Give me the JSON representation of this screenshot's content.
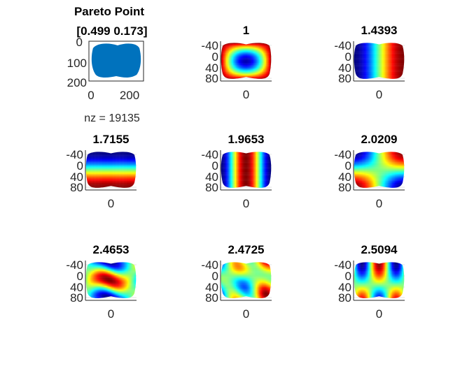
{
  "figure": {
    "main_title_line1": "Pareto Point",
    "main_title_line2": "[0.499 0.173]"
  },
  "chart_data": [
    {
      "type": "spy",
      "title": "Pareto Point\n[0.499 0.173]",
      "xlabel": "nz = 19135",
      "xticks": [
        "0",
        "200"
      ],
      "yticks": [
        "0",
        "100",
        "200"
      ],
      "xlim": [
        0,
        200
      ],
      "ylim": [
        0,
        200
      ],
      "nonzeros": 19135,
      "marker_color": "#0072BD"
    },
    {
      "type": "heatmap",
      "title": "1",
      "xticks": [
        "0"
      ],
      "yticks": [
        "-40",
        "0",
        "40",
        "80"
      ],
      "mode": [
        0,
        0
      ]
    },
    {
      "type": "heatmap",
      "title": "1.4393",
      "xticks": [
        "0"
      ],
      "yticks": [
        "-40",
        "0",
        "40",
        "80"
      ],
      "mode": [
        1,
        0
      ]
    },
    {
      "type": "heatmap",
      "title": "1.7155",
      "xticks": [
        "0"
      ],
      "yticks": [
        "-40",
        "0",
        "40",
        "80"
      ],
      "mode": [
        0,
        1
      ]
    },
    {
      "type": "heatmap",
      "title": "1.9653",
      "xticks": [
        "0"
      ],
      "yticks": [
        "-40",
        "0",
        "40",
        "80"
      ],
      "mode": [
        2,
        0
      ]
    },
    {
      "type": "heatmap",
      "title": "2.0209",
      "xticks": [
        "0"
      ],
      "yticks": [
        "-40",
        "0",
        "40",
        "80"
      ],
      "mode": [
        1,
        1
      ]
    },
    {
      "type": "heatmap",
      "title": "2.4653",
      "xticks": [
        "0"
      ],
      "yticks": [
        "-40",
        "0",
        "40",
        "80"
      ],
      "mode": [
        0,
        2
      ]
    },
    {
      "type": "heatmap",
      "title": "2.4725",
      "xticks": [
        "0"
      ],
      "yticks": [
        "-40",
        "0",
        "40",
        "80"
      ],
      "mode": [
        2,
        1
      ]
    },
    {
      "type": "heatmap",
      "title": "2.5094",
      "xticks": [
        "0"
      ],
      "yticks": [
        "-40",
        "0",
        "40",
        "80"
      ],
      "mode": [
        3,
        0
      ]
    }
  ],
  "colormap": "jet"
}
